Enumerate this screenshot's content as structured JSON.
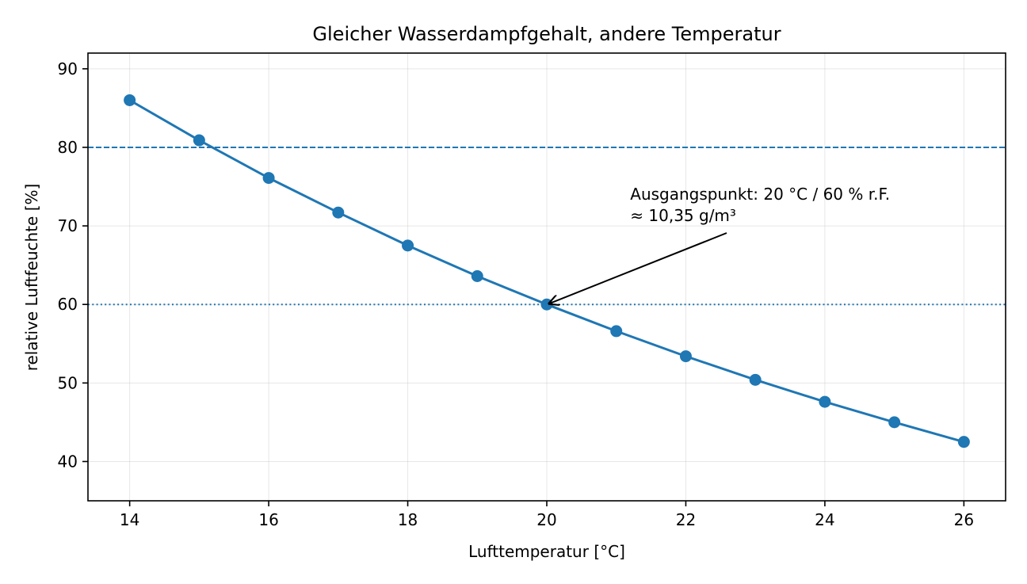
{
  "chart_data": {
    "type": "line",
    "title": "Gleicher Wasserdampfgehalt, andere Temperatur",
    "xlabel": "Lufttemperatur [°C]",
    "ylabel": "relative Luftfeuchte [%]",
    "xlim": [
      13.4,
      26.6
    ],
    "ylim": [
      35,
      92
    ],
    "xticks": [
      14,
      16,
      18,
      20,
      22,
      24,
      26
    ],
    "yticks": [
      40,
      50,
      60,
      70,
      80,
      90
    ],
    "grid": true,
    "series": [
      {
        "color": "#1f77b4",
        "marker": "circle",
        "x": [
          14,
          15,
          16,
          17,
          18,
          19,
          20,
          21,
          22,
          23,
          24,
          25,
          26
        ],
        "y": [
          86.0,
          80.9,
          76.1,
          71.7,
          67.5,
          63.6,
          60.0,
          56.6,
          53.4,
          50.4,
          47.6,
          45.0,
          42.5
        ]
      }
    ],
    "reference_lines": [
      {
        "y": 80,
        "style": "dashed",
        "color": "#1f77b4"
      },
      {
        "y": 60,
        "style": "dotted",
        "color": "#1f77b4"
      }
    ],
    "annotation": {
      "lines": [
        "Ausgangspunkt: 20 °C / 60 % r.F.",
        "≈ 10,35 g/m³"
      ],
      "point": [
        20,
        60
      ],
      "text_at": [
        21.2,
        70.5
      ]
    }
  }
}
